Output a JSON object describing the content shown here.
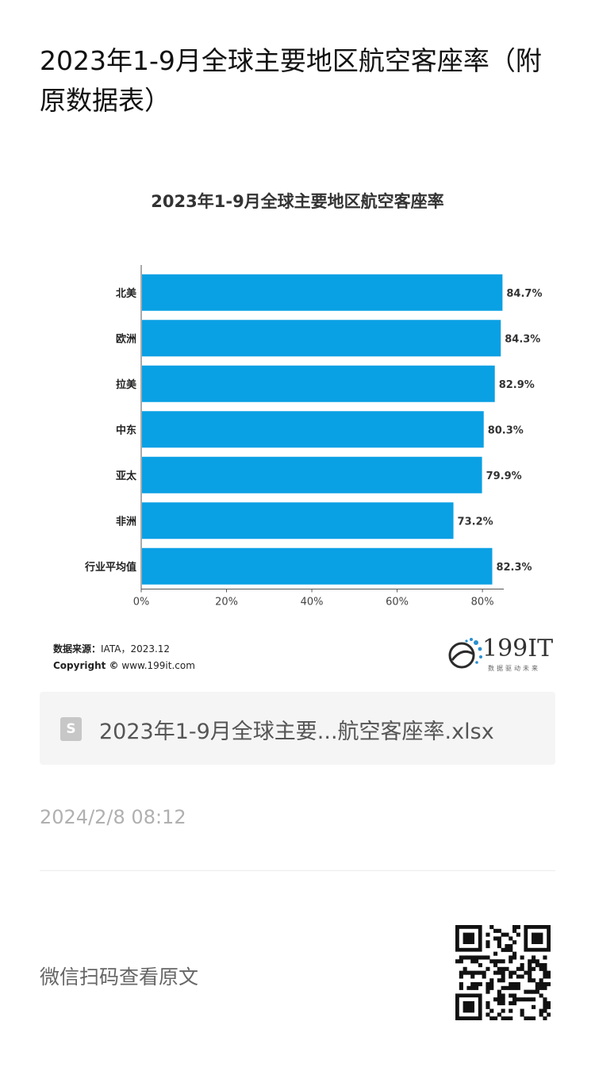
{
  "article": {
    "title": "2023年1-9月全球主要地区航空客座率（附原数据表）"
  },
  "chart_data": {
    "type": "bar",
    "orientation": "horizontal",
    "title": "2023年1-9月全球主要地区航空客座率",
    "categories": [
      "北美",
      "欧洲",
      "拉美",
      "中东",
      "亚太",
      "非洲",
      "行业平均值"
    ],
    "values": [
      84.7,
      84.3,
      82.9,
      80.3,
      79.9,
      73.2,
      82.3
    ],
    "value_labels": [
      "84.7%",
      "84.3%",
      "82.9%",
      "80.3%",
      "79.9%",
      "73.2%",
      "82.3%"
    ],
    "xlim": [
      0,
      85
    ],
    "xticks": [
      0,
      20,
      40,
      60,
      80
    ],
    "xtick_labels": [
      "0%",
      "20%",
      "40%",
      "60%",
      "80%"
    ],
    "xlabel": "",
    "ylabel": "",
    "grid": false,
    "bar_color": "#0aa0e4"
  },
  "source": {
    "label": "数据来源：",
    "value": "IATA，2023.12",
    "copyright_label": "Copyright ©",
    "copyright_site": "www.199it.com"
  },
  "brand": {
    "name": "199IT",
    "tagline": "数据驱动未来"
  },
  "attachment": {
    "icon": "spreadsheet-file-icon",
    "filename": "2023年1-9月全球主要...航空客座率.xlsx"
  },
  "footer": {
    "timestamp": "2024/2/8 08:12",
    "scan_text": "微信扫码查看原文"
  }
}
